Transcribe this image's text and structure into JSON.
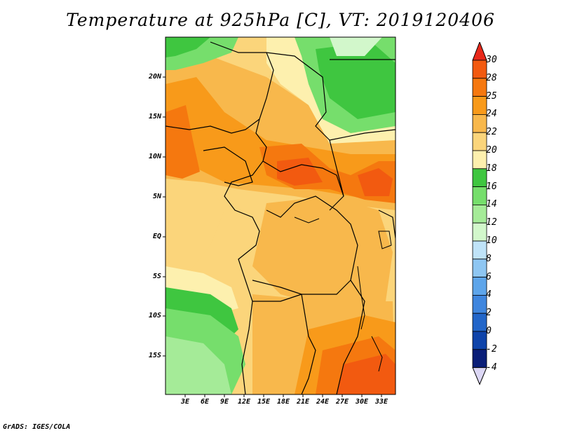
{
  "title": "Temperature at 925hPa [C], VT: 2019120406",
  "credit": "GrADS: IGES/COLA",
  "map": {
    "variable": "Temperature",
    "level": "925hPa",
    "units": "C",
    "valid_time": "2019120406",
    "lat_labels": [
      "20N",
      "15N",
      "10N",
      "5N",
      "EQ",
      "5S",
      "10S",
      "15S"
    ],
    "lon_labels": [
      "3E",
      "6E",
      "9E",
      "12E",
      "15E",
      "18E",
      "21E",
      "24E",
      "27E",
      "30E",
      "33E"
    ]
  },
  "colorbar": {
    "labels": [
      "30",
      "28",
      "25",
      "24",
      "22",
      "20",
      "18",
      "16",
      "14",
      "12",
      "10",
      "8",
      "6",
      "4",
      "2",
      "0",
      "-2",
      "-4"
    ],
    "colors": [
      "#e8281a",
      "#f25a10",
      "#f5780f",
      "#f89a1a",
      "#f8b84c",
      "#fbd57b",
      "#fdf0ae",
      "#3fc640",
      "#76de6c",
      "#a5eb98",
      "#d2f7cb",
      "#bfe3f8",
      "#8ec6f2",
      "#5ea5ea",
      "#3f86de",
      "#2266c9",
      "#0f44aa",
      "#0a1e78"
    ]
  }
}
